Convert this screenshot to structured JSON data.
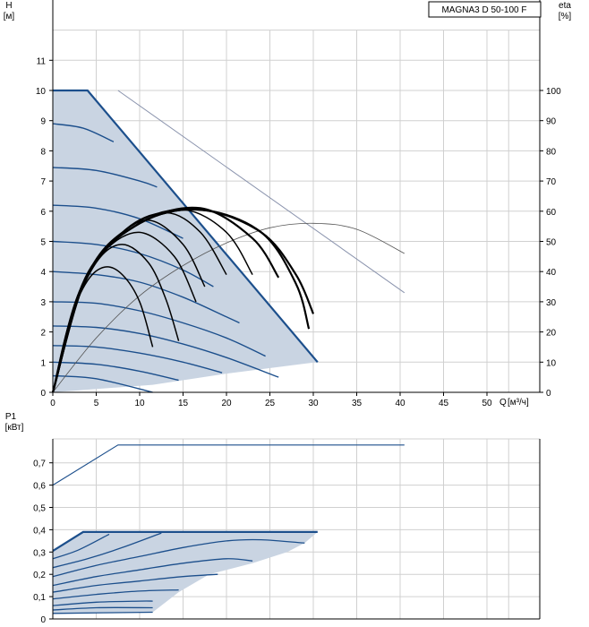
{
  "chart_data": [
    {
      "type": "line",
      "title": "MAGNA3 D 50-100 F",
      "ylabel": "H",
      "yunit": "[м]",
      "y2label": "eta",
      "y2unit": "[%]",
      "xlabel": "Q",
      "xunit": "[м³/ч]",
      "xlim": [
        0,
        55
      ],
      "ylim": [
        0,
        12
      ],
      "y2lim": [
        0,
        120
      ],
      "xticks": [
        0,
        5,
        10,
        15,
        20,
        25,
        30,
        35,
        40,
        45,
        50
      ],
      "yticks": [
        0,
        1,
        2,
        3,
        4,
        5,
        6,
        7,
        8,
        9,
        10,
        11
      ],
      "y2ticks": [
        0,
        10,
        20,
        30,
        40,
        50,
        60,
        70,
        80,
        90,
        100
      ],
      "grid": true,
      "colors": {
        "region_fill": "#c9d4e2",
        "curve": "#1c4f8c",
        "boundary": "#1c4f8c",
        "efficiency": "#000000",
        "gray_line": "#8a93ad"
      },
      "operating_region": [
        [
          0,
          10
        ],
        [
          4,
          10
        ],
        [
          30.5,
          1
        ],
        [
          29,
          0.95
        ],
        [
          20,
          0.62
        ],
        [
          11.5,
          0.25
        ],
        [
          0,
          0
        ]
      ],
      "series": [
        {
          "values": [
            [
              0,
              10
            ],
            [
              4,
              10
            ],
            [
              30.5,
              1
            ]
          ]
        },
        {
          "values": [
            [
              0,
              8.9
            ],
            [
              3.5,
              8.75
            ],
            [
              7,
              8.3
            ]
          ]
        },
        {
          "values": [
            [
              0,
              7.45
            ],
            [
              5,
              7.35
            ],
            [
              10,
              7
            ],
            [
              12,
              6.8
            ]
          ]
        },
        {
          "values": [
            [
              0,
              6.2
            ],
            [
              5,
              6.1
            ],
            [
              10,
              5.75
            ],
            [
              15,
              5.1
            ]
          ]
        },
        {
          "values": [
            [
              0,
              5
            ],
            [
              5,
              4.9
            ],
            [
              10,
              4.6
            ],
            [
              15,
              4.05
            ],
            [
              18.5,
              3.5
            ]
          ]
        },
        {
          "values": [
            [
              0,
              4
            ],
            [
              5,
              3.9
            ],
            [
              10,
              3.65
            ],
            [
              15,
              3.15
            ],
            [
              20,
              2.5
            ],
            [
              21.5,
              2.3
            ]
          ]
        },
        {
          "values": [
            [
              0,
              3
            ],
            [
              5,
              2.95
            ],
            [
              10,
              2.7
            ],
            [
              15,
              2.3
            ],
            [
              20,
              1.8
            ],
            [
              24.5,
              1.2
            ]
          ]
        },
        {
          "values": [
            [
              0,
              2.2
            ],
            [
              5,
              2.15
            ],
            [
              10,
              1.95
            ],
            [
              15,
              1.6
            ],
            [
              20,
              1.15
            ],
            [
              26,
              0.5
            ]
          ]
        },
        {
          "values": [
            [
              0,
              1.55
            ],
            [
              5,
              1.5
            ],
            [
              10,
              1.3
            ],
            [
              15,
              1
            ],
            [
              19.5,
              0.65
            ]
          ]
        },
        {
          "values": [
            [
              0,
              1
            ],
            [
              5,
              0.93
            ],
            [
              10,
              0.7
            ],
            [
              14.5,
              0.4
            ]
          ]
        },
        {
          "values": [
            [
              0,
              0.55
            ],
            [
              5,
              0.45
            ],
            [
              11.5,
              0
            ]
          ]
        },
        {
          "values": [
            [
              7.5,
              10
            ],
            [
              40.5,
              3.3
            ]
          ]
        },
        {
          "values": [
            [
              0,
              0
            ],
            [
              5,
              1.8
            ],
            [
              10,
              3.2
            ],
            [
              15,
              4.2
            ],
            [
              20,
              4.95
            ],
            [
              25,
              5.45
            ],
            [
              30,
              5.6
            ],
            [
              35,
              5.4
            ],
            [
              40.5,
              4.6
            ]
          ]
        }
      ],
      "efficiency_curves": [
        {
          "values": [
            [
              0,
              0
            ],
            [
              2,
              2.4
            ],
            [
              4,
              3.7
            ],
            [
              6,
              4.15
            ],
            [
              8,
              3.9
            ],
            [
              10,
              3
            ],
            [
              11.5,
              1.5
            ]
          ]
        },
        {
          "values": [
            [
              0,
              0
            ],
            [
              2,
              2.4
            ],
            [
              5,
              4.3
            ],
            [
              8,
              4.9
            ],
            [
              11,
              4.3
            ],
            [
              13,
              3.1
            ],
            [
              14.5,
              1.7
            ]
          ]
        },
        {
          "values": [
            [
              0,
              0
            ],
            [
              3,
              3.3
            ],
            [
              6,
              4.7
            ],
            [
              10,
              5.3
            ],
            [
              14,
              4.5
            ],
            [
              16.5,
              3
            ]
          ]
        },
        {
          "values": [
            [
              0,
              0
            ],
            [
              3,
              3.3
            ],
            [
              7,
              5
            ],
            [
              11,
              5.7
            ],
            [
              15,
              4.9
            ],
            [
              17.5,
              3.5
            ]
          ]
        },
        {
          "values": [
            [
              0,
              0
            ],
            [
              3,
              3.3
            ],
            [
              8,
              5.3
            ],
            [
              13,
              5.95
            ],
            [
              17,
              5.3
            ],
            [
              20,
              3.9
            ]
          ]
        },
        {
          "values": [
            [
              0,
              0
            ],
            [
              4,
              3.9
            ],
            [
              9,
              5.5
            ],
            [
              15,
              6.05
            ],
            [
              20,
              5.3
            ],
            [
              23,
              3.9
            ]
          ]
        },
        {
          "values": [
            [
              0,
              0
            ],
            [
              4,
              3.9
            ],
            [
              10,
              5.6
            ],
            [
              17,
              6.1
            ],
            [
              23,
              5.1
            ],
            [
              26,
              3.8
            ]
          ]
        },
        {
          "values": [
            [
              0,
              0
            ],
            [
              4,
              3.9
            ],
            [
              10,
              5.6
            ],
            [
              17,
              6.05
            ],
            [
              24,
              5.3
            ],
            [
              28,
              3.6
            ],
            [
              29.5,
              2.1
            ]
          ]
        },
        {
          "values": [
            [
              0,
              0
            ],
            [
              4,
              3.9
            ],
            [
              10,
              5.6
            ],
            [
              17,
              6.05
            ],
            [
              24,
              5.3
            ],
            [
              28,
              3.9
            ],
            [
              30,
              2.6
            ]
          ]
        }
      ]
    },
    {
      "type": "line",
      "ylabel": "P1",
      "yunit": "[кВт]",
      "ylim": [
        0,
        0.8
      ],
      "yticks": [
        0,
        0.1,
        0.2,
        0.3,
        0.4,
        0.5,
        0.6,
        0.7
      ],
      "ytick_labels": [
        "0",
        "0,1",
        "0,2",
        "0,3",
        "0,4",
        "0,5",
        "0,6",
        "0,7"
      ],
      "colors": {
        "region_fill": "#c9d4e2",
        "curve": "#1c4f8c"
      },
      "operating_region": [
        [
          0,
          0.305
        ],
        [
          3.5,
          0.39
        ],
        [
          30.5,
          0.39
        ],
        [
          29,
          0.34
        ],
        [
          27,
          0.3
        ],
        [
          23,
          0.25
        ],
        [
          18,
          0.2
        ],
        [
          14.5,
          0.12
        ],
        [
          11.5,
          0.03
        ],
        [
          0,
          0.025
        ]
      ],
      "series": [
        {
          "values": [
            [
              0,
              0.6
            ],
            [
              7.5,
              0.78
            ],
            [
              40.5,
              0.78
            ]
          ]
        },
        {
          "values": [
            [
              0,
              0.305
            ],
            [
              3.5,
              0.39
            ],
            [
              30.5,
              0.39
            ]
          ]
        },
        {
          "values": [
            [
              0,
              0.27
            ],
            [
              3,
              0.31
            ],
            [
              6.5,
              0.38
            ]
          ]
        },
        {
          "values": [
            [
              0,
              0.23
            ],
            [
              4,
              0.27
            ],
            [
              8,
              0.32
            ],
            [
              12.5,
              0.385
            ]
          ]
        },
        {
          "values": [
            [
              0,
              0.19
            ],
            [
              5,
              0.24
            ],
            [
              10,
              0.28
            ],
            [
              15,
              0.32
            ],
            [
              20,
              0.35
            ],
            [
              24,
              0.355
            ],
            [
              29,
              0.34
            ]
          ]
        },
        {
          "values": [
            [
              0,
              0.15
            ],
            [
              5,
              0.19
            ],
            [
              10,
              0.22
            ],
            [
              15,
              0.25
            ],
            [
              20,
              0.27
            ],
            [
              23,
              0.26
            ]
          ]
        },
        {
          "values": [
            [
              0,
              0.12
            ],
            [
              5,
              0.15
            ],
            [
              10,
              0.17
            ],
            [
              15,
              0.19
            ],
            [
              19,
              0.2
            ]
          ]
        },
        {
          "values": [
            [
              0,
              0.09
            ],
            [
              5,
              0.11
            ],
            [
              10,
              0.125
            ],
            [
              14.5,
              0.13
            ]
          ]
        },
        {
          "values": [
            [
              0,
              0.06
            ],
            [
              5,
              0.075
            ],
            [
              10,
              0.08
            ],
            [
              11.5,
              0.08
            ]
          ]
        },
        {
          "values": [
            [
              0,
              0.04
            ],
            [
              5,
              0.05
            ],
            [
              11.5,
              0.05
            ]
          ]
        },
        {
          "values": [
            [
              0,
              0.025
            ],
            [
              11.5,
              0.03
            ]
          ]
        }
      ]
    }
  ]
}
